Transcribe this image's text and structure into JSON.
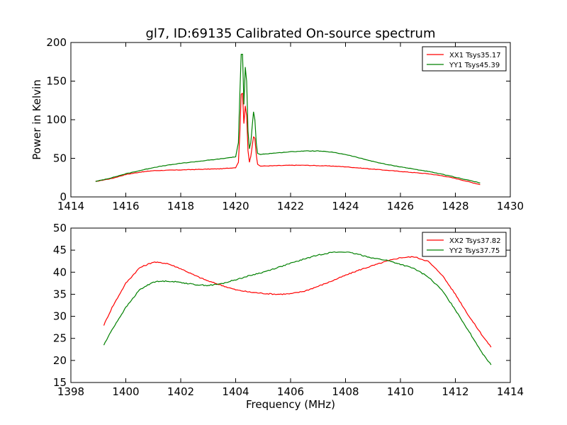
{
  "chart_data": [
    {
      "type": "line",
      "title": "gl7, ID:69135 Calibrated On-source spectrum",
      "xlabel": "",
      "ylabel": "Power in Kelvin",
      "xlim": [
        1414,
        1430
      ],
      "ylim": [
        0,
        200
      ],
      "xticks": [
        1414,
        1416,
        1418,
        1420,
        1422,
        1424,
        1426,
        1428,
        1430
      ],
      "yticks": [
        0,
        50,
        100,
        150,
        200
      ],
      "grid": false,
      "legend_position": "top-right",
      "series": [
        {
          "name": "XX1 Tsys35.17",
          "color": "#ff0000",
          "x": [
            1414.9,
            1415.5,
            1416.0,
            1416.5,
            1417.0,
            1417.5,
            1418.0,
            1418.5,
            1419.0,
            1419.5,
            1420.0,
            1420.1,
            1420.15,
            1420.2,
            1420.25,
            1420.3,
            1420.35,
            1420.4,
            1420.45,
            1420.5,
            1420.55,
            1420.6,
            1420.65,
            1420.7,
            1420.75,
            1420.8,
            1420.9,
            1421.0,
            1421.5,
            1422.0,
            1422.5,
            1423.0,
            1423.5,
            1424.0,
            1424.5,
            1425.0,
            1425.5,
            1426.0,
            1426.5,
            1427.0,
            1427.5,
            1428.0,
            1428.5,
            1428.9
          ],
          "y": [
            20,
            24,
            29,
            32,
            34,
            34.5,
            35,
            35.5,
            36,
            36.5,
            38,
            45,
            80,
            133,
            134,
            95,
            118,
            105,
            60,
            45,
            52,
            65,
            78,
            76,
            55,
            42,
            40,
            40,
            40.5,
            41,
            41,
            40.5,
            40,
            39,
            37.5,
            36,
            34.5,
            33,
            31.5,
            30,
            27.5,
            24,
            19.5,
            16
          ]
        },
        {
          "name": "YY1 Tsys45.39",
          "color": "#008000",
          "x": [
            1414.9,
            1415.5,
            1416.0,
            1416.5,
            1417.0,
            1417.5,
            1418.0,
            1418.5,
            1419.0,
            1419.5,
            1420.0,
            1420.1,
            1420.15,
            1420.2,
            1420.25,
            1420.3,
            1420.35,
            1420.4,
            1420.45,
            1420.5,
            1420.55,
            1420.6,
            1420.65,
            1420.7,
            1420.75,
            1420.8,
            1420.9,
            1421.0,
            1421.5,
            1422.0,
            1422.5,
            1423.0,
            1423.5,
            1424.0,
            1424.5,
            1425.0,
            1425.5,
            1426.0,
            1426.5,
            1427.0,
            1427.5,
            1428.0,
            1428.5,
            1428.9
          ],
          "y": [
            20,
            25,
            30,
            34,
            38,
            41,
            43.5,
            45.5,
            47.5,
            49.5,
            52,
            70,
            130,
            185,
            185,
            120,
            168,
            150,
            85,
            62,
            70,
            90,
            110,
            100,
            70,
            56,
            55,
            55.5,
            57,
            58.5,
            59.5,
            59.5,
            58,
            55,
            50.5,
            46,
            42,
            39,
            36,
            33,
            29.5,
            25.5,
            21.5,
            18
          ]
        }
      ]
    },
    {
      "type": "line",
      "title": "",
      "xlabel": "Frequency (MHz)",
      "ylabel": "",
      "xlim": [
        1398,
        1414
      ],
      "ylim": [
        15,
        50
      ],
      "xticks": [
        1398,
        1400,
        1402,
        1404,
        1406,
        1408,
        1410,
        1412,
        1414
      ],
      "yticks": [
        15,
        20,
        25,
        30,
        35,
        40,
        45,
        50
      ],
      "grid": false,
      "legend_position": "top-right",
      "series": [
        {
          "name": "XX2 Tsys37.82",
          "color": "#ff0000",
          "x": [
            1399.2,
            1399.5,
            1400.0,
            1400.5,
            1401.0,
            1401.5,
            1402.0,
            1402.5,
            1403.0,
            1403.5,
            1404.0,
            1404.5,
            1405.0,
            1405.5,
            1406.0,
            1406.5,
            1407.0,
            1407.5,
            1408.0,
            1408.5,
            1409.0,
            1409.5,
            1410.0,
            1410.5,
            1411.0,
            1411.5,
            1412.0,
            1412.5,
            1413.0,
            1413.3
          ],
          "y": [
            28,
            32,
            37.5,
            41,
            42.3,
            42,
            40.8,
            39.3,
            38,
            37,
            36,
            35.5,
            35.2,
            35,
            35.1,
            35.7,
            36.8,
            38,
            39.3,
            40.5,
            41.5,
            42.5,
            43.3,
            43.5,
            42.5,
            39.5,
            35,
            30,
            25.5,
            23
          ]
        },
        {
          "name": "YY2 Tsys37.75",
          "color": "#008000",
          "x": [
            1399.2,
            1399.5,
            1400.0,
            1400.5,
            1401.0,
            1401.5,
            1402.0,
            1402.5,
            1403.0,
            1403.5,
            1404.0,
            1404.5,
            1405.0,
            1405.5,
            1406.0,
            1406.5,
            1407.0,
            1407.5,
            1408.0,
            1408.5,
            1409.0,
            1409.5,
            1410.0,
            1410.5,
            1411.0,
            1411.5,
            1412.0,
            1412.5,
            1413.0,
            1413.3
          ],
          "y": [
            23.5,
            27,
            32,
            36,
            37.8,
            38,
            37.7,
            37.2,
            37,
            37.4,
            38.3,
            39.2,
            40,
            41,
            42,
            43,
            43.9,
            44.5,
            44.6,
            44,
            43.2,
            42.7,
            41.8,
            40.8,
            39,
            36,
            31.5,
            26.5,
            21.5,
            19
          ]
        }
      ]
    }
  ]
}
